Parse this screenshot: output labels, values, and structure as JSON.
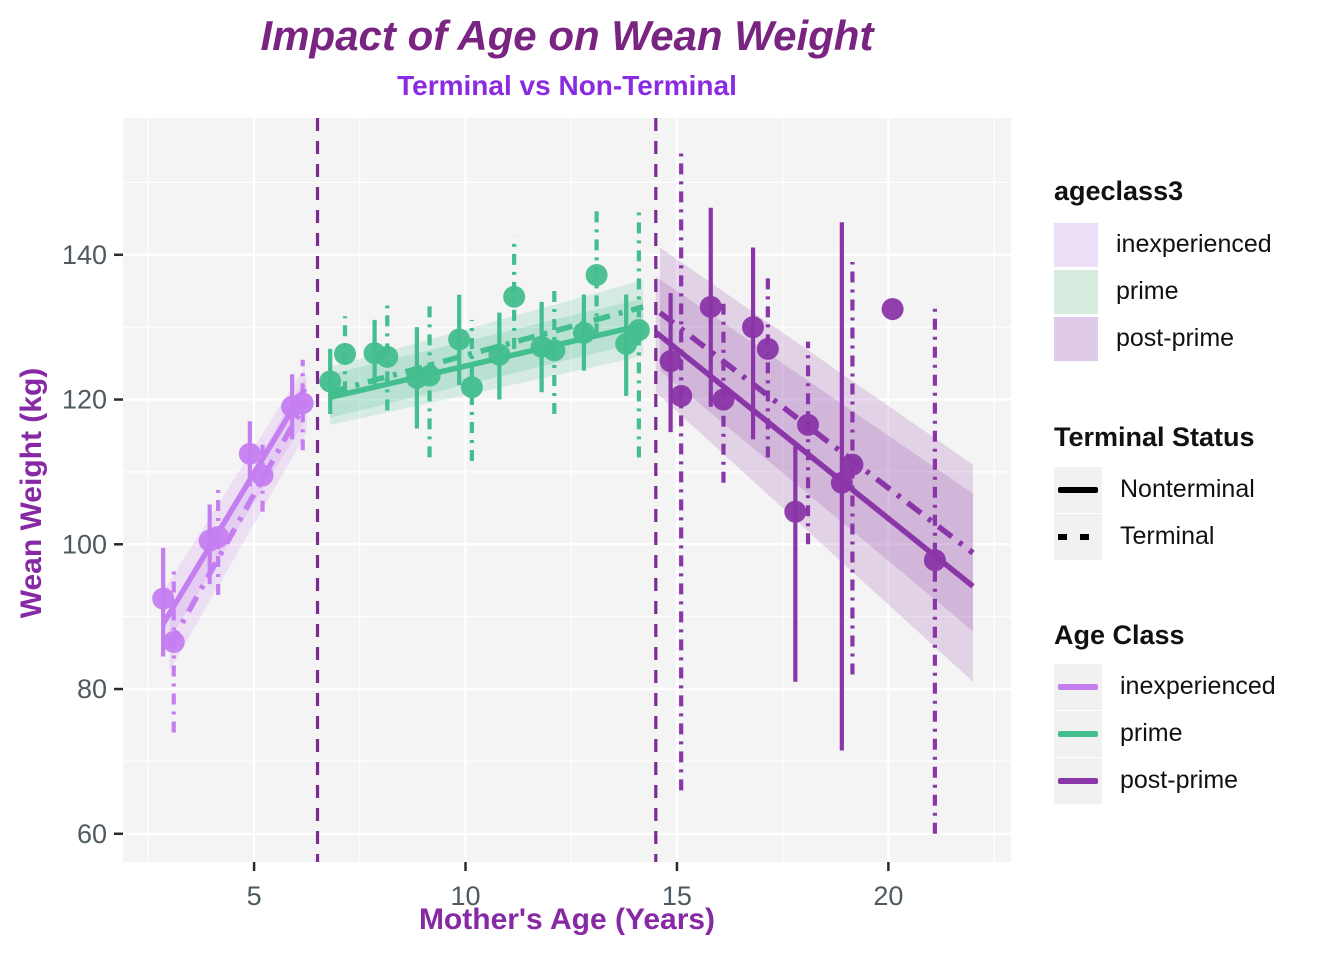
{
  "header": {
    "title": "Impact of Age on Wean Weight",
    "subtitle": "Terminal vs Non-Terminal"
  },
  "axes": {
    "x_label": "Mother's Age (Years)",
    "y_label": "Wean Weight (kg)"
  },
  "colors": {
    "title": "#7a2482",
    "subtitle": "#8a2be2",
    "axis_title": "#8729a5",
    "tick_label": "#4d5a61",
    "tick_mark": "#2b2b2b",
    "panel_bg": "#f4f4f4",
    "grid": "#ffffff",
    "vline": "#7c2b92"
  },
  "chart_data": {
    "type": "scatter",
    "title": "Impact of Age on Wean Weight",
    "subtitle": "Terminal vs Non-Terminal",
    "xlabel": "Mother's Age (Years)",
    "ylabel": "Wean Weight (kg)",
    "xlim": [
      1.9,
      22.9
    ],
    "ylim": [
      56.1,
      158.9
    ],
    "xticks": [
      5,
      10,
      15,
      20
    ],
    "yticks": [
      60,
      80,
      100,
      120,
      140
    ],
    "x_minor": [
      2.5,
      7.5,
      12.5,
      17.5,
      22.5
    ],
    "y_minor": [
      70,
      90,
      110,
      130,
      150
    ],
    "grid": true,
    "legend_position": "right",
    "vlines": {
      "x": [
        6.5,
        14.5
      ],
      "style": "dashed"
    },
    "series": [
      {
        "name": "inexperienced",
        "color": "#c57ef0",
        "points": [
          {
            "x": 2.85,
            "y": 92.5,
            "lo": 84.5,
            "hi": 99.5,
            "terminal": false
          },
          {
            "x": 3.1,
            "y": 86.5,
            "lo": 74.0,
            "hi": 97.0,
            "terminal": true
          },
          {
            "x": 3.95,
            "y": 100.5,
            "lo": 94.5,
            "hi": 105.5,
            "terminal": false
          },
          {
            "x": 4.15,
            "y": 101.0,
            "lo": 93.0,
            "hi": 108.0,
            "terminal": true
          },
          {
            "x": 4.9,
            "y": 112.5,
            "lo": 108.0,
            "hi": 117.0,
            "terminal": false
          },
          {
            "x": 5.2,
            "y": 109.5,
            "lo": 104.5,
            "hi": 114.5,
            "terminal": true
          },
          {
            "x": 5.9,
            "y": 119.0,
            "lo": 114.5,
            "hi": 123.5,
            "terminal": false
          },
          {
            "x": 6.15,
            "y": 119.5,
            "lo": 113.0,
            "hi": 125.5,
            "terminal": true
          }
        ],
        "trend_nonterminal": {
          "x1": 2.85,
          "y1": 89.0,
          "x2": 6.2,
          "y2": 121.5
        },
        "trend_terminal": {
          "x1": 3.0,
          "y1": 86.0,
          "x2": 6.25,
          "y2": 120.0
        },
        "ribbons": [
          {
            "x1": 2.85,
            "l1": 85.5,
            "u1": 93.5,
            "x2": 6.2,
            "l2": 117.0,
            "u2": 124.5
          },
          {
            "x1": 3.0,
            "l1": 82.5,
            "u1": 90.0,
            "x2": 6.25,
            "l2": 115.5,
            "u2": 123.5
          }
        ]
      },
      {
        "name": "prime",
        "color": "#43be8e",
        "points": [
          {
            "x": 6.8,
            "y": 122.5,
            "lo": 118.0,
            "hi": 127.0,
            "terminal": false
          },
          {
            "x": 7.15,
            "y": 126.3,
            "lo": 121.0,
            "hi": 131.5,
            "terminal": true
          },
          {
            "x": 7.85,
            "y": 126.4,
            "lo": 121.5,
            "hi": 131.0,
            "terminal": false
          },
          {
            "x": 8.15,
            "y": 125.9,
            "lo": 118.5,
            "hi": 133.0,
            "terminal": true
          },
          {
            "x": 8.85,
            "y": 123.0,
            "lo": 116.0,
            "hi": 130.0,
            "terminal": false
          },
          {
            "x": 9.15,
            "y": 123.3,
            "lo": 112.0,
            "hi": 133.0,
            "terminal": true
          },
          {
            "x": 9.85,
            "y": 128.3,
            "lo": 122.0,
            "hi": 134.5,
            "terminal": false
          },
          {
            "x": 10.15,
            "y": 121.7,
            "lo": 111.5,
            "hi": 131.0,
            "terminal": true
          },
          {
            "x": 10.8,
            "y": 126.2,
            "lo": 120.0,
            "hi": 132.0,
            "terminal": false
          },
          {
            "x": 11.15,
            "y": 134.2,
            "lo": 127.0,
            "hi": 142.5,
            "terminal": true
          },
          {
            "x": 11.8,
            "y": 127.3,
            "lo": 121.0,
            "hi": 133.5,
            "terminal": false
          },
          {
            "x": 12.1,
            "y": 126.8,
            "lo": 118.0,
            "hi": 135.0,
            "terminal": true
          },
          {
            "x": 12.8,
            "y": 129.2,
            "lo": 124.0,
            "hi": 134.5,
            "terminal": false
          },
          {
            "x": 13.1,
            "y": 137.2,
            "lo": 129.0,
            "hi": 146.5,
            "terminal": true
          },
          {
            "x": 13.8,
            "y": 127.7,
            "lo": 120.5,
            "hi": 134.5,
            "terminal": false
          },
          {
            "x": 14.1,
            "y": 129.6,
            "lo": 112.0,
            "hi": 146.5,
            "terminal": true
          }
        ],
        "trend_nonterminal": {
          "x1": 6.8,
          "y1": 120.3,
          "x2": 14.2,
          "y2": 130.3
        },
        "trend_terminal": {
          "x1": 6.8,
          "y1": 121.0,
          "x2": 14.2,
          "y2": 132.8
        },
        "ribbons": [
          {
            "x1": 6.8,
            "l1": 116.5,
            "u1": 123.5,
            "x2": 14.2,
            "l2": 126.0,
            "u2": 134.0
          },
          {
            "x1": 6.8,
            "l1": 117.5,
            "u1": 124.5,
            "x2": 14.2,
            "l2": 128.0,
            "u2": 136.5
          }
        ]
      },
      {
        "name": "post-prime",
        "color": "#8a35a8",
        "points": [
          {
            "x": 14.85,
            "y": 125.3,
            "lo": 115.5,
            "hi": 134.7,
            "terminal": false
          },
          {
            "x": 15.1,
            "y": 120.5,
            "lo": 66.0,
            "hi": 154.0,
            "terminal": true
          },
          {
            "x": 15.8,
            "y": 132.8,
            "lo": 119.0,
            "hi": 146.5,
            "terminal": false
          },
          {
            "x": 16.1,
            "y": 120.0,
            "lo": 108.5,
            "hi": 133.8,
            "terminal": true
          },
          {
            "x": 16.8,
            "y": 130.0,
            "lo": 114.5,
            "hi": 141.0,
            "terminal": false
          },
          {
            "x": 17.15,
            "y": 127.0,
            "lo": 112.0,
            "hi": 137.5,
            "terminal": true
          },
          {
            "x": 17.8,
            "y": 104.5,
            "lo": 81.0,
            "hi": 113.5,
            "terminal": false
          },
          {
            "x": 18.1,
            "y": 116.5,
            "lo": 100.0,
            "hi": 128.0,
            "terminal": true
          },
          {
            "x": 18.9,
            "y": 108.5,
            "lo": 71.5,
            "hi": 144.5,
            "terminal": false
          },
          {
            "x": 19.15,
            "y": 111.0,
            "lo": 82.0,
            "hi": 139.0,
            "terminal": true
          },
          {
            "x": 20.1,
            "y": 132.5,
            "lo": null,
            "hi": null,
            "terminal": false
          },
          {
            "x": 21.1,
            "y": 97.8,
            "lo": 60.0,
            "hi": 133.5,
            "terminal": true
          }
        ],
        "trend_nonterminal": {
          "x1": 14.5,
          "y1": 129.3,
          "x2": 22.0,
          "y2": 94.2
        },
        "trend_terminal": {
          "x1": 14.6,
          "y1": 132.0,
          "x2": 22.0,
          "y2": 98.8
        },
        "ribbons": [
          {
            "x1": 14.5,
            "l1": 121.0,
            "u1": 137.0,
            "x2": 22.0,
            "l2": 81.0,
            "u2": 107.0
          },
          {
            "x1": 14.6,
            "l1": 124.0,
            "u1": 141.0,
            "x2": 22.0,
            "l2": 88.0,
            "u2": 111.0
          }
        ]
      }
    ]
  },
  "legends": {
    "fill": {
      "title": "ageclass3",
      "items": [
        {
          "label": "inexperienced",
          "color": "#ecdef7"
        },
        {
          "label": "prime",
          "color": "#d7ecdf"
        },
        {
          "label": "post-prime",
          "color": "#dfc9e9"
        }
      ]
    },
    "linetype": {
      "title": "Terminal Status",
      "items": [
        {
          "label": "Nonterminal",
          "style": "solid"
        },
        {
          "label": "Terminal",
          "style": "dashed"
        }
      ]
    },
    "color": {
      "title": "Age Class",
      "items": [
        {
          "label": "inexperienced",
          "color": "#c57ef0"
        },
        {
          "label": "prime",
          "color": "#43be8e"
        },
        {
          "label": "post-prime",
          "color": "#8a35a8"
        }
      ]
    }
  }
}
